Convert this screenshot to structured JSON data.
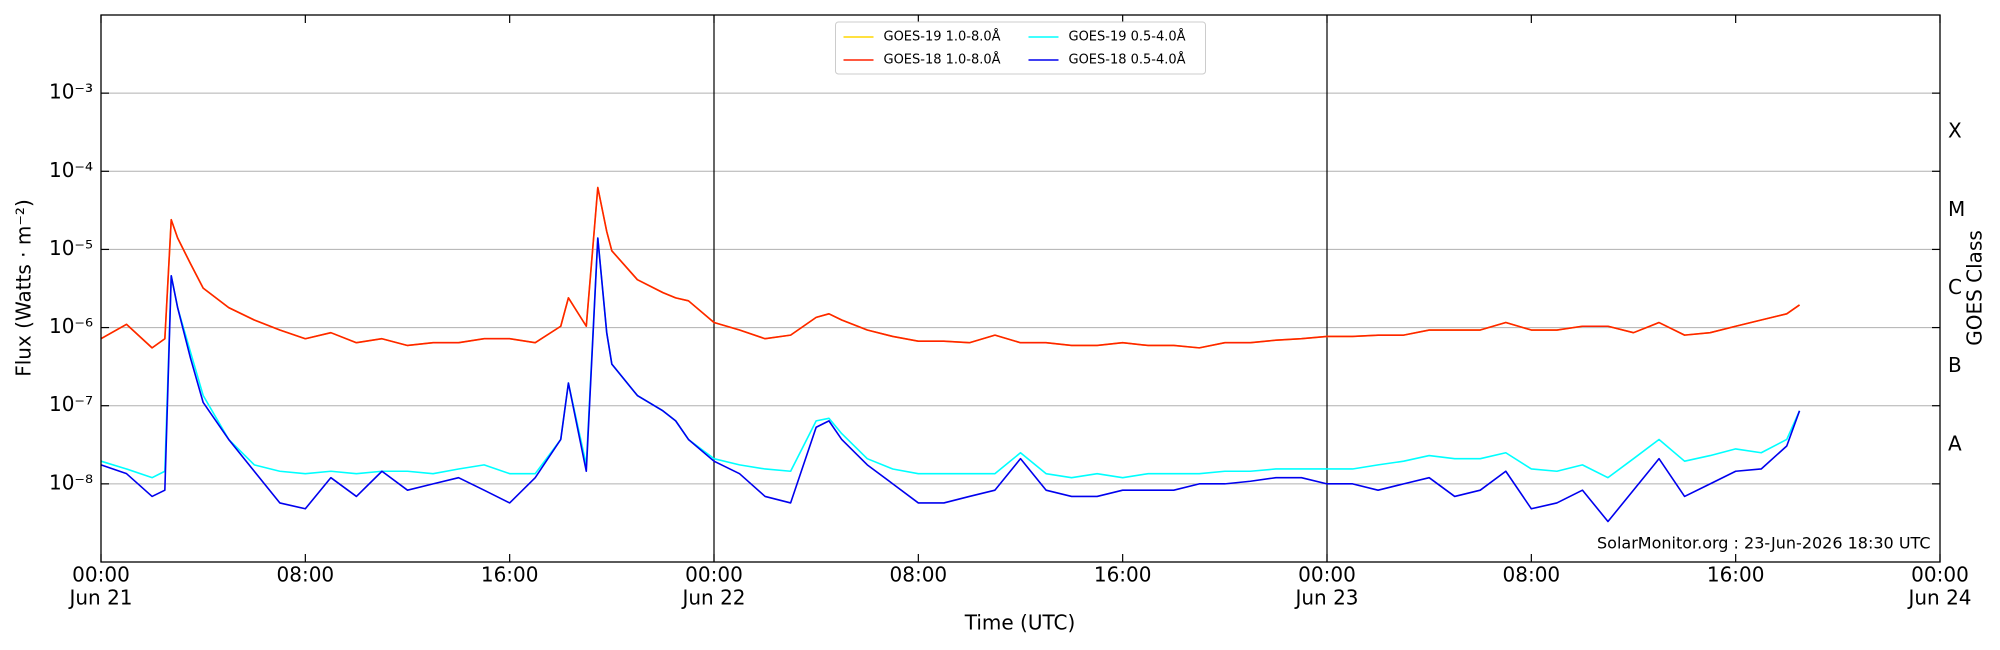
{
  "chart_data": {
    "type": "line",
    "xlabel": "Time (UTC)",
    "ylabel": "Flux (Watts · m⁻²)",
    "y2label": "GOES Class",
    "annotation": "SolarMonitor.org : 23-Jun-2026 18:30 UTC",
    "yscale": "log",
    "grid": true,
    "legend": "upper center",
    "xlim": [
      "Jun 21 00:00",
      "Jun 24 00:00"
    ],
    "xticks": [
      {
        "value": "Jun 21 00:00",
        "label": [
          "00:00",
          "Jun 21"
        ]
      },
      {
        "value": "Jun 21 08:00",
        "label": "08:00"
      },
      {
        "value": "Jun 21 16:00",
        "label": "16:00"
      },
      {
        "value": "Jun 22 00:00",
        "label": [
          "00:00",
          "Jun 22"
        ]
      },
      {
        "value": "Jun 22 08:00",
        "label": "08:00"
      },
      {
        "value": "Jun 22 16:00",
        "label": "16:00"
      },
      {
        "value": "Jun 23 00:00",
        "label": [
          "00:00",
          "Jun 23"
        ]
      },
      {
        "value": "Jun 23 08:00",
        "label": "08:00"
      },
      {
        "value": "Jun 23 16:00",
        "label": "16:00"
      },
      {
        "value": "Jun 24 00:00",
        "label": [
          "00:00",
          "Jun 24"
        ]
      }
    ],
    "ylim": [
      1e-09,
      0.01
    ],
    "yticks": [
      {
        "value": 1e-08,
        "label": "10⁻⁸"
      },
      {
        "value": 1e-07,
        "label": "10⁻⁷"
      },
      {
        "value": 1e-06,
        "label": "10⁻⁶"
      },
      {
        "value": 1e-05,
        "label": "10⁻⁵"
      },
      {
        "value": 0.0001,
        "label": "10⁻⁴"
      },
      {
        "value": 0.001,
        "label": "10⁻³"
      }
    ],
    "y2lim": [
      1e-09,
      0.01
    ],
    "y2ticks": [
      {
        "value": 3.162e-08,
        "label": "A"
      },
      {
        "value": 3.162e-07,
        "label": "B"
      },
      {
        "value": 3.162e-06,
        "label": "C"
      },
      {
        "value": 3.162e-05,
        "label": "M"
      },
      {
        "value": 0.0003162,
        "label": "X"
      }
    ],
    "x": [
      "Jun 21 00:00",
      "Jun 21 01:00",
      "Jun 21 02:00",
      "Jun 21 02:30",
      "Jun 21 02:45",
      "Jun 21 03:00",
      "Jun 21 03:30",
      "Jun 21 04:00",
      "Jun 21 05:00",
      "Jun 21 06:00",
      "Jun 21 07:00",
      "Jun 21 08:00",
      "Jun 21 09:00",
      "Jun 21 10:00",
      "Jun 21 11:00",
      "Jun 21 12:00",
      "Jun 21 13:00",
      "Jun 21 14:00",
      "Jun 21 15:00",
      "Jun 21 16:00",
      "Jun 21 17:00",
      "Jun 21 18:00",
      "Jun 21 18:18",
      "Jun 21 19:00",
      "Jun 21 19:27",
      "Jun 21 19:48",
      "Jun 21 20:00",
      "Jun 21 21:00",
      "Jun 21 22:00",
      "Jun 21 22:30",
      "Jun 21 23:00",
      "Jun 22 00:00",
      "Jun 22 01:00",
      "Jun 22 02:00",
      "Jun 22 03:00",
      "Jun 22 04:00",
      "Jun 22 04:30",
      "Jun 22 05:00",
      "Jun 22 06:00",
      "Jun 22 07:00",
      "Jun 22 08:00",
      "Jun 22 09:00",
      "Jun 22 10:00",
      "Jun 22 11:00",
      "Jun 22 12:00",
      "Jun 22 13:00",
      "Jun 22 14:00",
      "Jun 22 15:00",
      "Jun 22 16:00",
      "Jun 22 17:00",
      "Jun 22 18:00",
      "Jun 22 19:00",
      "Jun 22 20:00",
      "Jun 22 21:00",
      "Jun 22 22:00",
      "Jun 22 23:00",
      "Jun 23 00:00",
      "Jun 23 01:00",
      "Jun 23 02:00",
      "Jun 23 03:00",
      "Jun 23 04:00",
      "Jun 23 05:00",
      "Jun 23 06:00",
      "Jun 23 07:00",
      "Jun 23 08:00",
      "Jun 23 09:00",
      "Jun 23 10:00",
      "Jun 23 11:00",
      "Jun 23 12:00",
      "Jun 23 13:00",
      "Jun 23 14:00",
      "Jun 23 15:00",
      "Jun 23 16:00",
      "Jun 23 17:00",
      "Jun 23 18:00",
      "Jun 23 18:30"
    ],
    "series": [
      {
        "name": "GOES-19 1.0-8.0Å",
        "color": "#ffd700",
        "values": [
          7.2e-07,
          1.1e-06,
          5.5e-07,
          7.2e-07,
          2.4e-05,
          1.4e-05,
          6.6e-06,
          3.2e-06,
          1.8e-06,
          1.25e-06,
          9.3e-07,
          7.2e-07,
          8.6e-07,
          6.4e-07,
          7.2e-07,
          5.9e-07,
          6.4e-07,
          6.4e-07,
          7.2e-07,
          7.2e-07,
          6.4e-07,
          1.04e-06,
          2.4e-06,
          1.04e-06,
          6.2e-05,
          1.7e-05,
          9.6e-06,
          4.1e-06,
          2.8e-06,
          2.4e-06,
          2.2e-06,
          1.16e-06,
          9.3e-07,
          7.2e-07,
          8e-07,
          1.35e-06,
          1.5e-06,
          1.25e-06,
          9.3e-07,
          7.7e-07,
          6.7e-07,
          6.7e-07,
          6.4e-07,
          8e-07,
          6.4e-07,
          6.4e-07,
          5.9e-07,
          5.9e-07,
          6.4e-07,
          5.9e-07,
          5.9e-07,
          5.5e-07,
          6.4e-07,
          6.4e-07,
          6.9e-07,
          7.2e-07,
          7.7e-07,
          7.7e-07,
          8e-07,
          8e-07,
          9.3e-07,
          9.3e-07,
          9.3e-07,
          1.16e-06,
          9.3e-07,
          9.3e-07,
          1.04e-06,
          1.04e-06,
          8.6e-07,
          1.16e-06,
          8e-07,
          8.6e-07,
          1.04e-06,
          1.25e-06,
          1.5e-06,
          1.95e-06
        ]
      },
      {
        "name": "GOES-18 1.0-8.0Å",
        "color": "#ff2200",
        "values": [
          7.2e-07,
          1.1e-06,
          5.5e-07,
          7.2e-07,
          2.4e-05,
          1.4e-05,
          6.6e-06,
          3.2e-06,
          1.8e-06,
          1.25e-06,
          9.3e-07,
          7.2e-07,
          8.6e-07,
          6.4e-07,
          7.2e-07,
          5.9e-07,
          6.4e-07,
          6.4e-07,
          7.2e-07,
          7.2e-07,
          6.4e-07,
          1.04e-06,
          2.4e-06,
          1.04e-06,
          6.2e-05,
          1.7e-05,
          9.6e-06,
          4.1e-06,
          2.8e-06,
          2.4e-06,
          2.2e-06,
          1.16e-06,
          9.3e-07,
          7.2e-07,
          8e-07,
          1.35e-06,
          1.5e-06,
          1.25e-06,
          9.3e-07,
          7.7e-07,
          6.7e-07,
          6.7e-07,
          6.4e-07,
          8e-07,
          6.4e-07,
          6.4e-07,
          5.9e-07,
          5.9e-07,
          6.4e-07,
          5.9e-07,
          5.9e-07,
          5.5e-07,
          6.4e-07,
          6.4e-07,
          6.9e-07,
          7.2e-07,
          7.7e-07,
          7.7e-07,
          8e-07,
          8e-07,
          9.3e-07,
          9.3e-07,
          9.3e-07,
          1.16e-06,
          9.3e-07,
          9.3e-07,
          1.04e-06,
          1.04e-06,
          8.6e-07,
          1.16e-06,
          8e-07,
          8.6e-07,
          1.04e-06,
          1.25e-06,
          1.5e-06,
          1.95e-06
        ]
      },
      {
        "name": "GOES-19 0.5-4.0Å",
        "color": "#00ffff",
        "values": [
          1.95e-08,
          1.55e-08,
          1.2e-08,
          1.45e-08,
          4.6e-06,
          1.8e-06,
          4.9e-07,
          1.35e-07,
          3.7e-08,
          1.75e-08,
          1.45e-08,
          1.35e-08,
          1.45e-08,
          1.35e-08,
          1.45e-08,
          1.45e-08,
          1.35e-08,
          1.55e-08,
          1.75e-08,
          1.35e-08,
          1.35e-08,
          3.7e-08,
          1.95e-07,
          1.75e-08,
          1.4e-05,
          8.6e-07,
          3.4e-07,
          1.35e-07,
          8.6e-08,
          6.4e-08,
          3.7e-08,
          2.1e-08,
          1.75e-08,
          1.55e-08,
          1.45e-08,
          6.4e-08,
          6.9e-08,
          4.4e-08,
          2.1e-08,
          1.55e-08,
          1.35e-08,
          1.35e-08,
          1.35e-08,
          1.35e-08,
          2.5e-08,
          1.35e-08,
          1.2e-08,
          1.35e-08,
          1.2e-08,
          1.35e-08,
          1.35e-08,
          1.35e-08,
          1.45e-08,
          1.45e-08,
          1.55e-08,
          1.55e-08,
          1.55e-08,
          1.55e-08,
          1.75e-08,
          1.95e-08,
          2.3e-08,
          2.1e-08,
          2.1e-08,
          2.5e-08,
          1.55e-08,
          1.45e-08,
          1.75e-08,
          1.2e-08,
          2.1e-08,
          3.7e-08,
          1.95e-08,
          2.3e-08,
          2.8e-08,
          2.5e-08,
          3.7e-08,
          8.6e-08
        ]
      },
      {
        "name": "GOES-18 0.5-4.0Å",
        "color": "#0000ee",
        "values": [
          1.75e-08,
          1.35e-08,
          6.9e-09,
          8.3e-09,
          4.6e-06,
          1.8e-06,
          4.1e-07,
          1.1e-07,
          3.7e-08,
          1.45e-08,
          5.7e-09,
          4.8e-09,
          1.2e-08,
          6.9e-09,
          1.45e-08,
          8.3e-09,
          1e-08,
          1.2e-08,
          8.3e-09,
          5.7e-09,
          1.2e-08,
          3.7e-08,
          1.95e-07,
          1.45e-08,
          1.4e-05,
          8.6e-07,
          3.4e-07,
          1.35e-07,
          8.6e-08,
          6.4e-08,
          3.7e-08,
          1.95e-08,
          1.35e-08,
          6.9e-09,
          5.7e-09,
          5.3e-08,
          6.4e-08,
          3.7e-08,
          1.75e-08,
          1e-08,
          5.7e-09,
          5.7e-09,
          6.9e-09,
          8.3e-09,
          2.1e-08,
          8.3e-09,
          6.9e-09,
          6.9e-09,
          8.3e-09,
          8.3e-09,
          8.3e-09,
          1e-08,
          1e-08,
          1.08e-08,
          1.2e-08,
          1.2e-08,
          1e-08,
          1e-08,
          8.3e-09,
          1e-08,
          1.2e-08,
          6.9e-09,
          8.3e-09,
          1.45e-08,
          4.8e-09,
          5.7e-09,
          8.3e-09,
          3.3e-09,
          8.3e-09,
          2.1e-08,
          6.9e-09,
          1e-08,
          1.45e-08,
          1.55e-08,
          3.05e-08,
          8.6e-08
        ]
      }
    ]
  }
}
